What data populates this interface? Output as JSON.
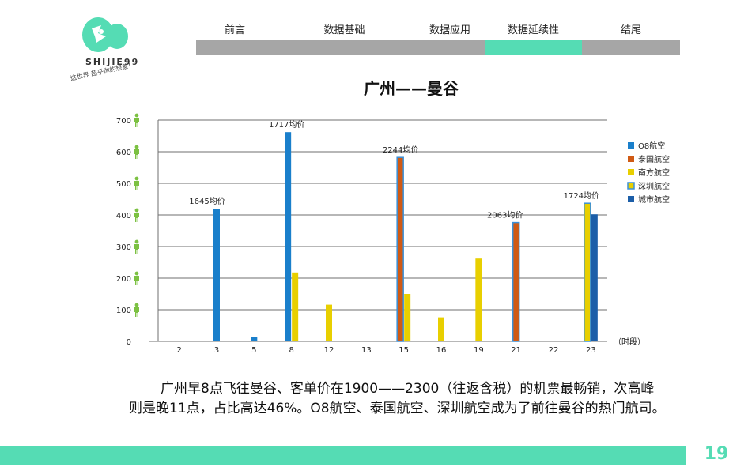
{
  "brand": {
    "name": "SHIJIE99",
    "slogan": "这世界 超乎你的想象！"
  },
  "nav": {
    "items": [
      {
        "label": "前言",
        "active": false
      },
      {
        "label": "数据基础",
        "active": false
      },
      {
        "label": "数据应用",
        "active": false
      },
      {
        "label": "数据延续性",
        "active": true
      },
      {
        "label": "结尾",
        "active": false
      }
    ]
  },
  "colors": {
    "accent": "#55dcb4",
    "nav_inactive": "#a6a6a6",
    "person_icon": "#7cc142"
  },
  "chart_data": {
    "type": "bar",
    "title": "广州——曼谷",
    "xlabel": "（时段）",
    "ylabel": "",
    "ylim": [
      0,
      700
    ],
    "yticks": [
      0,
      100,
      200,
      300,
      400,
      500,
      600,
      700
    ],
    "categories": [
      "2",
      "3",
      "5",
      "8",
      "12",
      "13",
      "15",
      "16",
      "19",
      "21",
      "22",
      "23"
    ],
    "grid": true,
    "legend_position": "right",
    "series": [
      {
        "name": "O8航空",
        "color": "#1a7fcb",
        "values": [
          0,
          420,
          15,
          662,
          0,
          0,
          0,
          0,
          0,
          0,
          0,
          0
        ]
      },
      {
        "name": "泰国航空",
        "color": "#d05a14",
        "values": [
          0,
          0,
          0,
          0,
          0,
          0,
          582,
          0,
          0,
          376,
          0,
          0
        ]
      },
      {
        "name": "南方航空",
        "color": "#e8cf00",
        "values": [
          0,
          0,
          0,
          218,
          116,
          0,
          150,
          76,
          262,
          0,
          0,
          0
        ]
      },
      {
        "name": "深圳航空",
        "color": "#e8cf00",
        "values": [
          0,
          0,
          0,
          0,
          0,
          0,
          0,
          0,
          0,
          0,
          0,
          437
        ]
      },
      {
        "name": "城市航空",
        "color": "#1c5ea8",
        "values": [
          0,
          0,
          0,
          0,
          0,
          0,
          0,
          0,
          0,
          0,
          0,
          402
        ]
      }
    ],
    "annotations": [
      {
        "text": "1645均价",
        "category": "3"
      },
      {
        "text": "1717均价",
        "category": "8"
      },
      {
        "text": "2244均价",
        "category": "15"
      },
      {
        "text": "2063均价",
        "category": "21"
      },
      {
        "text": "1724均价",
        "category": "23"
      }
    ]
  },
  "body_text": "广州早8点飞往曼谷、客单价在1900——2300（往返含税）的机票最畅销，次高峰则是晚11点，占比高达46%。O8航空、泰国航空、深圳航空成为了前往曼谷的热门航司。",
  "page_number": "19"
}
